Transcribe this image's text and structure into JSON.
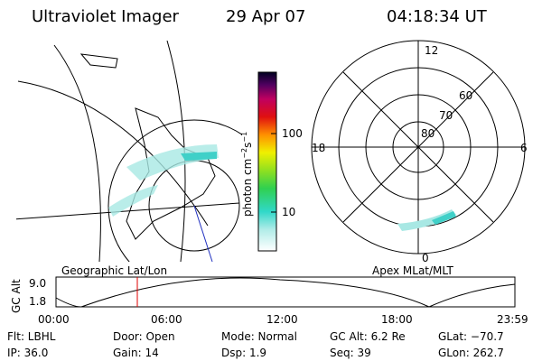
{
  "header": {
    "title": "Ultraviolet Imager",
    "date": "29 Apr 07",
    "time": "04:18:34 UT"
  },
  "colorbar": {
    "ticks": [
      "100",
      "10"
    ],
    "unit": {
      "base": "photon cm",
      "exp1": "−2",
      "mid": "s",
      "exp2": "−1"
    }
  },
  "polar": {
    "mlt": {
      "top": "12",
      "left": "18",
      "right": "6",
      "bottom": "0"
    },
    "mlat": [
      "80",
      "70",
      "60"
    ]
  },
  "panels": {
    "left": "Geographic Lat/Lon",
    "right": "Apex MLat/MLT"
  },
  "altitude": {
    "label": "GC Alt",
    "yticks": [
      "9.0",
      "1.8"
    ],
    "xticks": [
      "00:00",
      "06:00",
      "12:00",
      "18:00",
      "23:59"
    ]
  },
  "info": {
    "rows": [
      [
        "Flt: LBHL",
        "Door: Open",
        "Mode: Normal",
        "GC Alt: 6.2 Re",
        "GLat: −70.7"
      ],
      [
        "IP: 36.0",
        "Gain: 14",
        "Dsp:    1.9",
        "Seq: 39",
        "GLon: 262.7"
      ]
    ]
  }
}
